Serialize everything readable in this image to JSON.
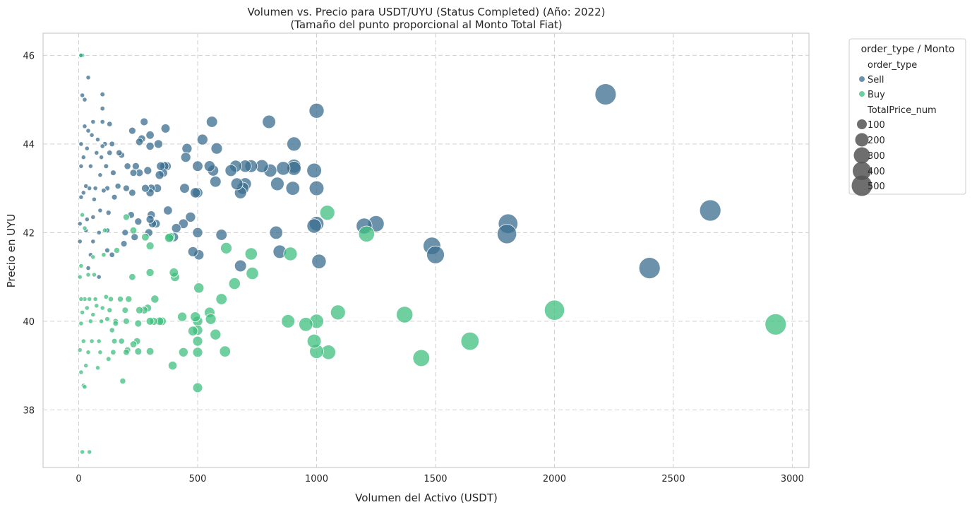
{
  "chart_data": {
    "type": "scatter",
    "title": "Volumen vs. Precio para USDT/UYU (Status Completed) (Año: 2022)",
    "subtitle": "(Tamaño del punto proporcional al Monto Total Fiat)",
    "xlabel": "Volumen del Activo (USDT)",
    "ylabel": "Precio en UYU",
    "xlim": [
      -150,
      3070
    ],
    "ylim": [
      36.7,
      46.5
    ],
    "xticks": [
      0,
      500,
      1000,
      1500,
      2000,
      2500,
      3000
    ],
    "yticks": [
      38,
      40,
      42,
      44,
      46
    ],
    "grid": true,
    "legend_placement": "outside upper right",
    "colors": {
      "Sell": "#3b6e8f",
      "Buy": "#3fbf7f",
      "size_legend": "#555555"
    },
    "legend": {
      "title": "order_type / Monto",
      "hue_title": "order_type",
      "hue_entries": [
        "Sell",
        "Buy"
      ],
      "size_title": "TotalPrice_num",
      "size_entries": [
        100,
        200,
        300,
        400,
        500
      ]
    },
    "series": [
      {
        "name": "Sell",
        "points": [
          [
            2215,
            45.12
          ],
          [
            2655,
            42.5
          ],
          [
            2400,
            41.2
          ],
          [
            1805,
            42.2
          ],
          [
            1800,
            41.97
          ],
          [
            1485,
            41.7
          ],
          [
            1500,
            41.5
          ],
          [
            1250,
            42.2
          ],
          [
            1200,
            42.15
          ],
          [
            1010,
            41.35
          ],
          [
            1000,
            42.2
          ],
          [
            990,
            42.15
          ],
          [
            1000,
            44.75
          ],
          [
            1000,
            43.0
          ],
          [
            990,
            43.4
          ],
          [
            905,
            44.0
          ],
          [
            905,
            43.5
          ],
          [
            905,
            43.45
          ],
          [
            900,
            43.0
          ],
          [
            860,
            43.45
          ],
          [
            835,
            43.1
          ],
          [
            845,
            41.57
          ],
          [
            830,
            42.0
          ],
          [
            800,
            44.5
          ],
          [
            805,
            43.4
          ],
          [
            770,
            43.5
          ],
          [
            725,
            43.5
          ],
          [
            700,
            43.5
          ],
          [
            700,
            43.1
          ],
          [
            690,
            43.0
          ],
          [
            680,
            42.9
          ],
          [
            665,
            43.1
          ],
          [
            660,
            43.5
          ],
          [
            640,
            43.4
          ],
          [
            680,
            41.25
          ],
          [
            600,
            41.95
          ],
          [
            580,
            43.9
          ],
          [
            575,
            43.15
          ],
          [
            565,
            43.4
          ],
          [
            560,
            44.5
          ],
          [
            550,
            43.5
          ],
          [
            520,
            44.1
          ],
          [
            500,
            43.5
          ],
          [
            500,
            42.9
          ],
          [
            490,
            42.9
          ],
          [
            500,
            42.0
          ],
          [
            505,
            41.5
          ],
          [
            480,
            41.57
          ],
          [
            470,
            42.35
          ],
          [
            455,
            43.9
          ],
          [
            450,
            43.7
          ],
          [
            445,
            43.0
          ],
          [
            440,
            42.2
          ],
          [
            410,
            42.1
          ],
          [
            400,
            41.9
          ],
          [
            375,
            42.5
          ],
          [
            370,
            43.5
          ],
          [
            365,
            44.35
          ],
          [
            360,
            43.5
          ],
          [
            355,
            43.35
          ],
          [
            345,
            43.5
          ],
          [
            340,
            43.3
          ],
          [
            335,
            44.0
          ],
          [
            330,
            43.0
          ],
          [
            325,
            42.2
          ],
          [
            310,
            42.2
          ],
          [
            305,
            42.4
          ],
          [
            300,
            44.2
          ],
          [
            300,
            43.95
          ],
          [
            305,
            43.0
          ],
          [
            300,
            42.9
          ],
          [
            300,
            42.3
          ],
          [
            295,
            42.0
          ],
          [
            290,
            43.4
          ],
          [
            280,
            43.0
          ],
          [
            275,
            44.5
          ],
          [
            265,
            44.12
          ],
          [
            255,
            44.05
          ],
          [
            255,
            43.35
          ],
          [
            250,
            42.25
          ],
          [
            240,
            43.5
          ],
          [
            235,
            41.9
          ],
          [
            230,
            43.35
          ],
          [
            225,
            44.3
          ],
          [
            225,
            42.9
          ],
          [
            220,
            42.4
          ],
          [
            205,
            43.5
          ],
          [
            200,
            43.0
          ],
          [
            195,
            42.0
          ],
          [
            190,
            41.75
          ],
          [
            180,
            43.75
          ],
          [
            170,
            43.8
          ],
          [
            165,
            43.05
          ],
          [
            150,
            42.8
          ],
          [
            145,
            43.35
          ],
          [
            140,
            44.0
          ],
          [
            130,
            44.45
          ],
          [
            130,
            43.8
          ],
          [
            125,
            42.45
          ],
          [
            120,
            43.0
          ],
          [
            115,
            43.5
          ],
          [
            110,
            44.0
          ],
          [
            105,
            42.95
          ],
          [
            100,
            45.12
          ],
          [
            100,
            44.5
          ],
          [
            100,
            43.95
          ],
          [
            95,
            43.7
          ],
          [
            90,
            43.3
          ],
          [
            90,
            42.5
          ],
          [
            85,
            42.0
          ],
          [
            80,
            44.1
          ],
          [
            75,
            43.8
          ],
          [
            70,
            43.0
          ],
          [
            65,
            42.75
          ],
          [
            60,
            44.5
          ],
          [
            55,
            44.2
          ],
          [
            50,
            43.5
          ],
          [
            50,
            41.5
          ],
          [
            45,
            43.0
          ],
          [
            40,
            45.5
          ],
          [
            40,
            44.3
          ],
          [
            35,
            43.9
          ],
          [
            35,
            42.3
          ],
          [
            30,
            43.05
          ],
          [
            30,
            42.05
          ],
          [
            25,
            45.0
          ],
          [
            25,
            44.4
          ],
          [
            20,
            43.7
          ],
          [
            20,
            42.9
          ],
          [
            15,
            45.1
          ],
          [
            10,
            44.0
          ],
          [
            10,
            43.5
          ],
          [
            10,
            42.8
          ],
          [
            5,
            42.2
          ],
          [
            5,
            41.8
          ],
          [
            15,
            46.0
          ],
          [
            8,
            46.0
          ],
          [
            120,
            41.6
          ],
          [
            140,
            41.5
          ],
          [
            60,
            41.8
          ],
          [
            40,
            41.2
          ],
          [
            85,
            41.0
          ],
          [
            100,
            44.8
          ],
          [
            120,
            42.05
          ],
          [
            60,
            42.35
          ]
        ]
      },
      {
        "name": "Buy",
        "points": [
          [
            2930,
            39.93
          ],
          [
            2000,
            40.25
          ],
          [
            1645,
            39.55
          ],
          [
            1440,
            39.17
          ],
          [
            1370,
            40.15
          ],
          [
            1210,
            41.97
          ],
          [
            1090,
            40.2
          ],
          [
            1045,
            42.45
          ],
          [
            1050,
            39.3
          ],
          [
            1000,
            40.0
          ],
          [
            1000,
            39.32
          ],
          [
            990,
            39.55
          ],
          [
            955,
            39.93
          ],
          [
            880,
            40.0
          ],
          [
            890,
            41.52
          ],
          [
            725,
            41.52
          ],
          [
            730,
            41.08
          ],
          [
            655,
            40.85
          ],
          [
            620,
            41.65
          ],
          [
            615,
            39.32
          ],
          [
            600,
            40.5
          ],
          [
            575,
            39.7
          ],
          [
            550,
            40.2
          ],
          [
            555,
            40.05
          ],
          [
            505,
            40.75
          ],
          [
            500,
            40.0
          ],
          [
            500,
            39.55
          ],
          [
            500,
            39.3
          ],
          [
            500,
            38.5
          ],
          [
            500,
            39.8
          ],
          [
            490,
            40.1
          ],
          [
            480,
            39.78
          ],
          [
            440,
            39.3
          ],
          [
            435,
            40.1
          ],
          [
            405,
            41.0
          ],
          [
            400,
            41.1
          ],
          [
            395,
            39.0
          ],
          [
            385,
            41.9
          ],
          [
            350,
            40.0
          ],
          [
            340,
            40.0
          ],
          [
            320,
            40.5
          ],
          [
            315,
            40.0
          ],
          [
            300,
            41.7
          ],
          [
            300,
            41.1
          ],
          [
            300,
            40.0
          ],
          [
            300,
            39.32
          ],
          [
            290,
            40.3
          ],
          [
            275,
            40.25
          ],
          [
            255,
            40.25
          ],
          [
            250,
            39.32
          ],
          [
            245,
            39.55
          ],
          [
            230,
            39.48
          ],
          [
            225,
            41.0
          ],
          [
            210,
            40.5
          ],
          [
            205,
            39.35
          ],
          [
            200,
            40.0
          ],
          [
            200,
            39.3
          ],
          [
            195,
            40.25
          ],
          [
            185,
            38.65
          ],
          [
            180,
            39.55
          ],
          [
            175,
            40.5
          ],
          [
            160,
            41.6
          ],
          [
            155,
            40.0
          ],
          [
            150,
            39.55
          ],
          [
            145,
            39.3
          ],
          [
            140,
            39.8
          ],
          [
            135,
            40.5
          ],
          [
            130,
            40.25
          ],
          [
            125,
            39.15
          ],
          [
            120,
            40.05
          ],
          [
            115,
            40.55
          ],
          [
            105,
            41.5
          ],
          [
            100,
            40.3
          ],
          [
            95,
            40.0
          ],
          [
            90,
            39.3
          ],
          [
            85,
            39.55
          ],
          [
            80,
            38.95
          ],
          [
            75,
            40.35
          ],
          [
            70,
            40.5
          ],
          [
            65,
            41.05
          ],
          [
            60,
            40.15
          ],
          [
            55,
            39.55
          ],
          [
            50,
            40.0
          ],
          [
            45,
            40.5
          ],
          [
            40,
            39.3
          ],
          [
            40,
            41.05
          ],
          [
            35,
            40.3
          ],
          [
            30,
            39.0
          ],
          [
            25,
            40.5
          ],
          [
            20,
            39.55
          ],
          [
            15,
            40.2
          ],
          [
            10,
            39.95
          ],
          [
            10,
            40.5
          ],
          [
            5,
            41.0
          ],
          [
            5,
            39.35
          ],
          [
            20,
            38.55
          ],
          [
            25,
            38.52
          ],
          [
            45,
            37.05
          ],
          [
            15,
            37.05
          ],
          [
            10,
            41.25
          ],
          [
            25,
            42.1
          ],
          [
            10,
            46.0
          ],
          [
            280,
            41.9
          ],
          [
            380,
            41.88
          ],
          [
            230,
            42.05
          ],
          [
            110,
            42.05
          ],
          [
            60,
            41.45
          ],
          [
            155,
            39.95
          ],
          [
            250,
            39.95
          ],
          [
            200,
            42.35
          ],
          [
            10,
            38.85
          ],
          [
            15,
            42.4
          ]
        ]
      }
    ]
  }
}
